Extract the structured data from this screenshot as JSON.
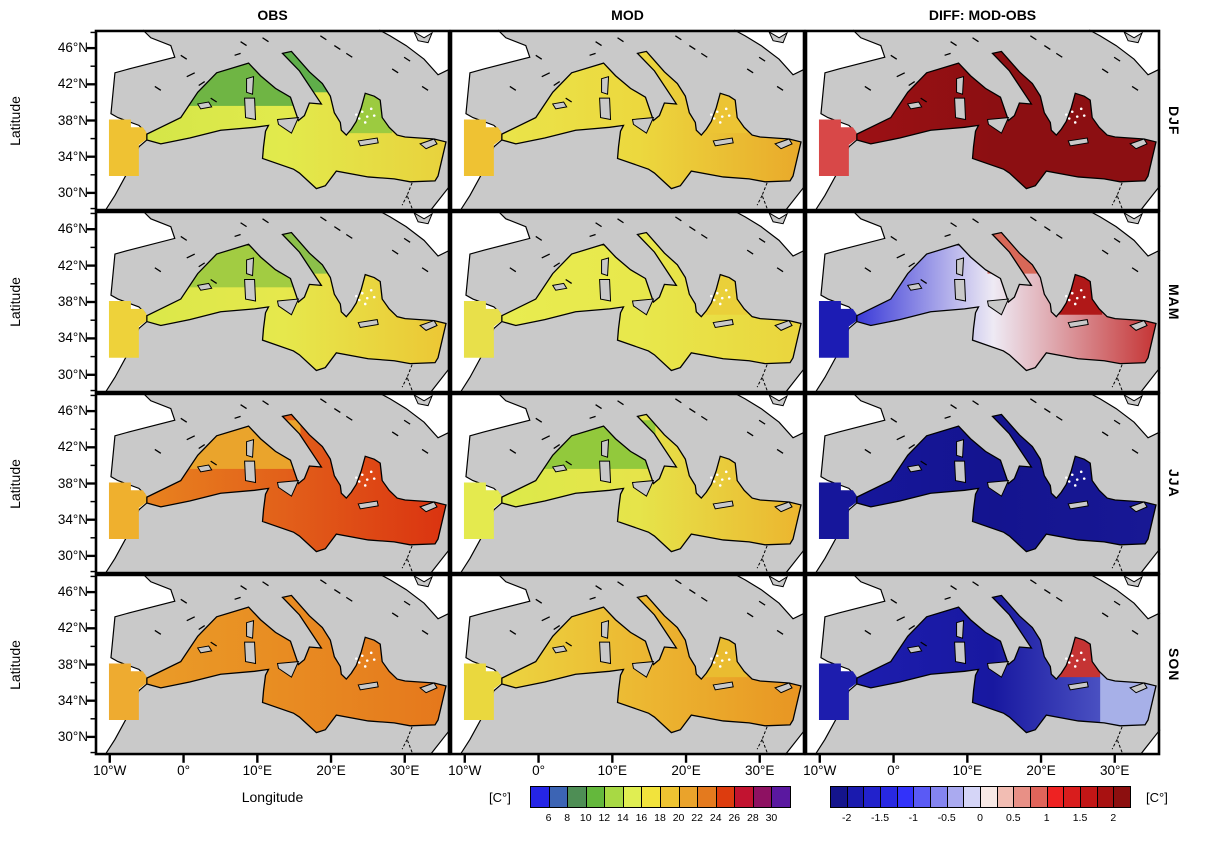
{
  "figure": {
    "column_titles": [
      "OBS",
      "MOD",
      "DIFF: MOD-OBS"
    ],
    "row_labels": [
      "DJF",
      "MAM",
      "JJA",
      "SON"
    ],
    "xlabel": "Longitude",
    "ylabel": "Latitude",
    "lat_ticks": [
      "46°N",
      "42°N",
      "38°N",
      "34°N",
      "30°N"
    ],
    "lon_ticks": [
      "10°W",
      "0°",
      "10°E",
      "20°E",
      "30°E"
    ],
    "land_color": "#c9c9c9",
    "outside_ocean_color": "#ffffff",
    "coast_color": "#000000"
  },
  "chart_data": {
    "type": "heatmap",
    "description": "Seasonal Mediterranean sea-surface temperature maps: observations (OBS), model (MOD) and their difference (DIFF: MOD-OBS) for DJF, MAM, JJA and SON.",
    "columns": [
      "OBS",
      "MOD",
      "DIFF: MOD-OBS"
    ],
    "rows": [
      "DJF",
      "MAM",
      "JJA",
      "SON"
    ],
    "lon_domain_deg": [
      -12,
      36
    ],
    "lat_domain_deg": [
      28,
      48
    ],
    "lon_ticks_deg": [
      -10,
      0,
      10,
      20,
      30
    ],
    "lat_ticks_deg": [
      46,
      42,
      38,
      34,
      30
    ],
    "temp_colorbar": {
      "label": "[C°]",
      "segment_step_c": 2,
      "ticks": [
        6,
        8,
        10,
        12,
        14,
        16,
        18,
        20,
        22,
        24,
        26,
        28,
        30
      ],
      "colors": [
        "#2525e6",
        "#3c64b4",
        "#4e8e55",
        "#64b83c",
        "#a8d944",
        "#e0ee52",
        "#f2e33c",
        "#eec431",
        "#eaa32b",
        "#e47a1e",
        "#dd3c0e",
        "#c21330",
        "#8e1162",
        "#5a18a0"
      ]
    },
    "diff_colorbar": {
      "label": "[C°]",
      "segment_step_c": 0.25,
      "ticks": [
        -2,
        -1.5,
        -1,
        -0.5,
        0,
        0.5,
        1,
        1.5,
        2
      ],
      "colors": [
        "#14148c",
        "#1a1aae",
        "#2222cc",
        "#2828e2",
        "#3232fa",
        "#5a5af5",
        "#8484f0",
        "#aaaaf0",
        "#d5d5f7",
        "#f7e8e5",
        "#f2bdb3",
        "#e89086",
        "#e0645a",
        "#ee2222",
        "#d91d1d",
        "#c21616",
        "#a81111",
        "#8c0f0f"
      ]
    },
    "panels": [
      {
        "id": "obs-djf",
        "row": "DJF",
        "col": "OBS",
        "approx_values_c": "12-18: green NW basin and Adriatic/Aegean, yellow-gold S and E",
        "west": "#d4e648",
        "central": "#e2ea4c",
        "east": "#e9d13c",
        "atlantic": "#efc233",
        "patches": [
          {
            "area": "nw",
            "color": "#6fb544"
          },
          {
            "area": "adriatic",
            "color": "#5fae4a"
          },
          {
            "area": "aegean",
            "color": "#9ccb40"
          }
        ]
      },
      {
        "id": "mod-djf",
        "row": "DJF",
        "col": "MOD",
        "approx_values_c": "15-21: yellow west basin, orange Levantine",
        "west": "#eae44a",
        "central": "#ecd83e",
        "east": "#e9a82a",
        "atlantic": "#efc233",
        "patches": [
          {
            "area": "aegean",
            "color": "#ecc434"
          }
        ]
      },
      {
        "id": "diff-djf",
        "row": "DJF",
        "col": "DIFF: MOD-OBS",
        "approx_values_c": "warm bias > +2 nearly everywhere",
        "west": "#9c1014",
        "central": "#8c0f12",
        "east": "#8c0f12",
        "atlantic": "#d84848",
        "patches": []
      },
      {
        "id": "obs-mam",
        "row": "MAM",
        "col": "OBS",
        "approx_values_c": "14-20: green north coast, gold SE",
        "west": "#dbe84a",
        "central": "#e6e84c",
        "east": "#ecc634",
        "atlantic": "#eed23a",
        "patches": [
          {
            "area": "nw",
            "color": "#a2cc42"
          },
          {
            "area": "adriatic",
            "color": "#8cc04a"
          }
        ]
      },
      {
        "id": "mod-mam",
        "row": "MAM",
        "col": "MOD",
        "approx_values_c": "15-19: nearly uniform yellow",
        "west": "#e8ec50",
        "central": "#e8e84c",
        "east": "#ead43c",
        "atlantic": "#e8e04a",
        "patches": [
          {
            "area": "aegean",
            "color": "#ead03a"
          }
        ]
      },
      {
        "id": "diff-mam",
        "row": "MAM",
        "col": "DIFF: MOD-OBS",
        "approx_values_c": "-2 west basin, near 0 centre, +1 to +2 Aegean/Levantine",
        "west": "#3a3ad8",
        "central": "#eeeaf4",
        "east": "#c43030",
        "atlantic": "#1c1cb4",
        "patches": [
          {
            "area": "aegean",
            "color": "#b01818"
          },
          {
            "area": "adriatic",
            "color": "#d86858"
          }
        ]
      },
      {
        "id": "obs-jja",
        "row": "JJA",
        "col": "OBS",
        "approx_values_c": "21-28: orange west, red east basin",
        "west": "#e8821f",
        "central": "#e2601a",
        "east": "#da3210",
        "atlantic": "#efb02e",
        "patches": [
          {
            "area": "nw",
            "color": "#eaa42c"
          }
        ]
      },
      {
        "id": "mod-jja",
        "row": "JJA",
        "col": "MOD",
        "approx_values_c": "15-22: green Gulf of Lion, yellow centre, gold east",
        "west": "#dcea4a",
        "central": "#e6e44a",
        "east": "#ecb42e",
        "atlantic": "#e4ea4e",
        "patches": [
          {
            "area": "nw",
            "color": "#92c93c"
          }
        ]
      },
      {
        "id": "diff-jja",
        "row": "JJA",
        "col": "DIFF: MOD-OBS",
        "approx_values_c": "cold bias < -2 nearly everywhere",
        "west": "#16169b",
        "central": "#14148f",
        "east": "#181895",
        "atlantic": "#16169b",
        "patches": []
      },
      {
        "id": "obs-son",
        "row": "SON",
        "col": "OBS",
        "approx_values_c": "20-26: orange basin-wide, darkest SE",
        "west": "#ea9c28",
        "central": "#e88c22",
        "east": "#e5771c",
        "atlantic": "#eeab30",
        "patches": []
      },
      {
        "id": "mod-son",
        "row": "SON",
        "col": "MOD",
        "approx_values_c": "17-23: yellow west, orange east",
        "west": "#ecd440",
        "central": "#ecb832",
        "east": "#e89422",
        "atlantic": "#ead83e",
        "patches": [
          {
            "area": "aegean",
            "color": "#eabc30"
          }
        ]
      },
      {
        "id": "diff-son",
        "row": "SON",
        "col": "DIFF: MOD-OBS",
        "approx_values_c": "-2 over most of basin, +1 to +2 Aegean, near 0 Levantine",
        "west": "#1d1dae",
        "central": "#1818a0",
        "east": "#6670d4",
        "atlantic": "#1d1dae",
        "patches": [
          {
            "area": "aegean",
            "color": "#c53434"
          },
          {
            "area": "levant",
            "color": "#a7b0e8"
          }
        ]
      }
    ]
  }
}
